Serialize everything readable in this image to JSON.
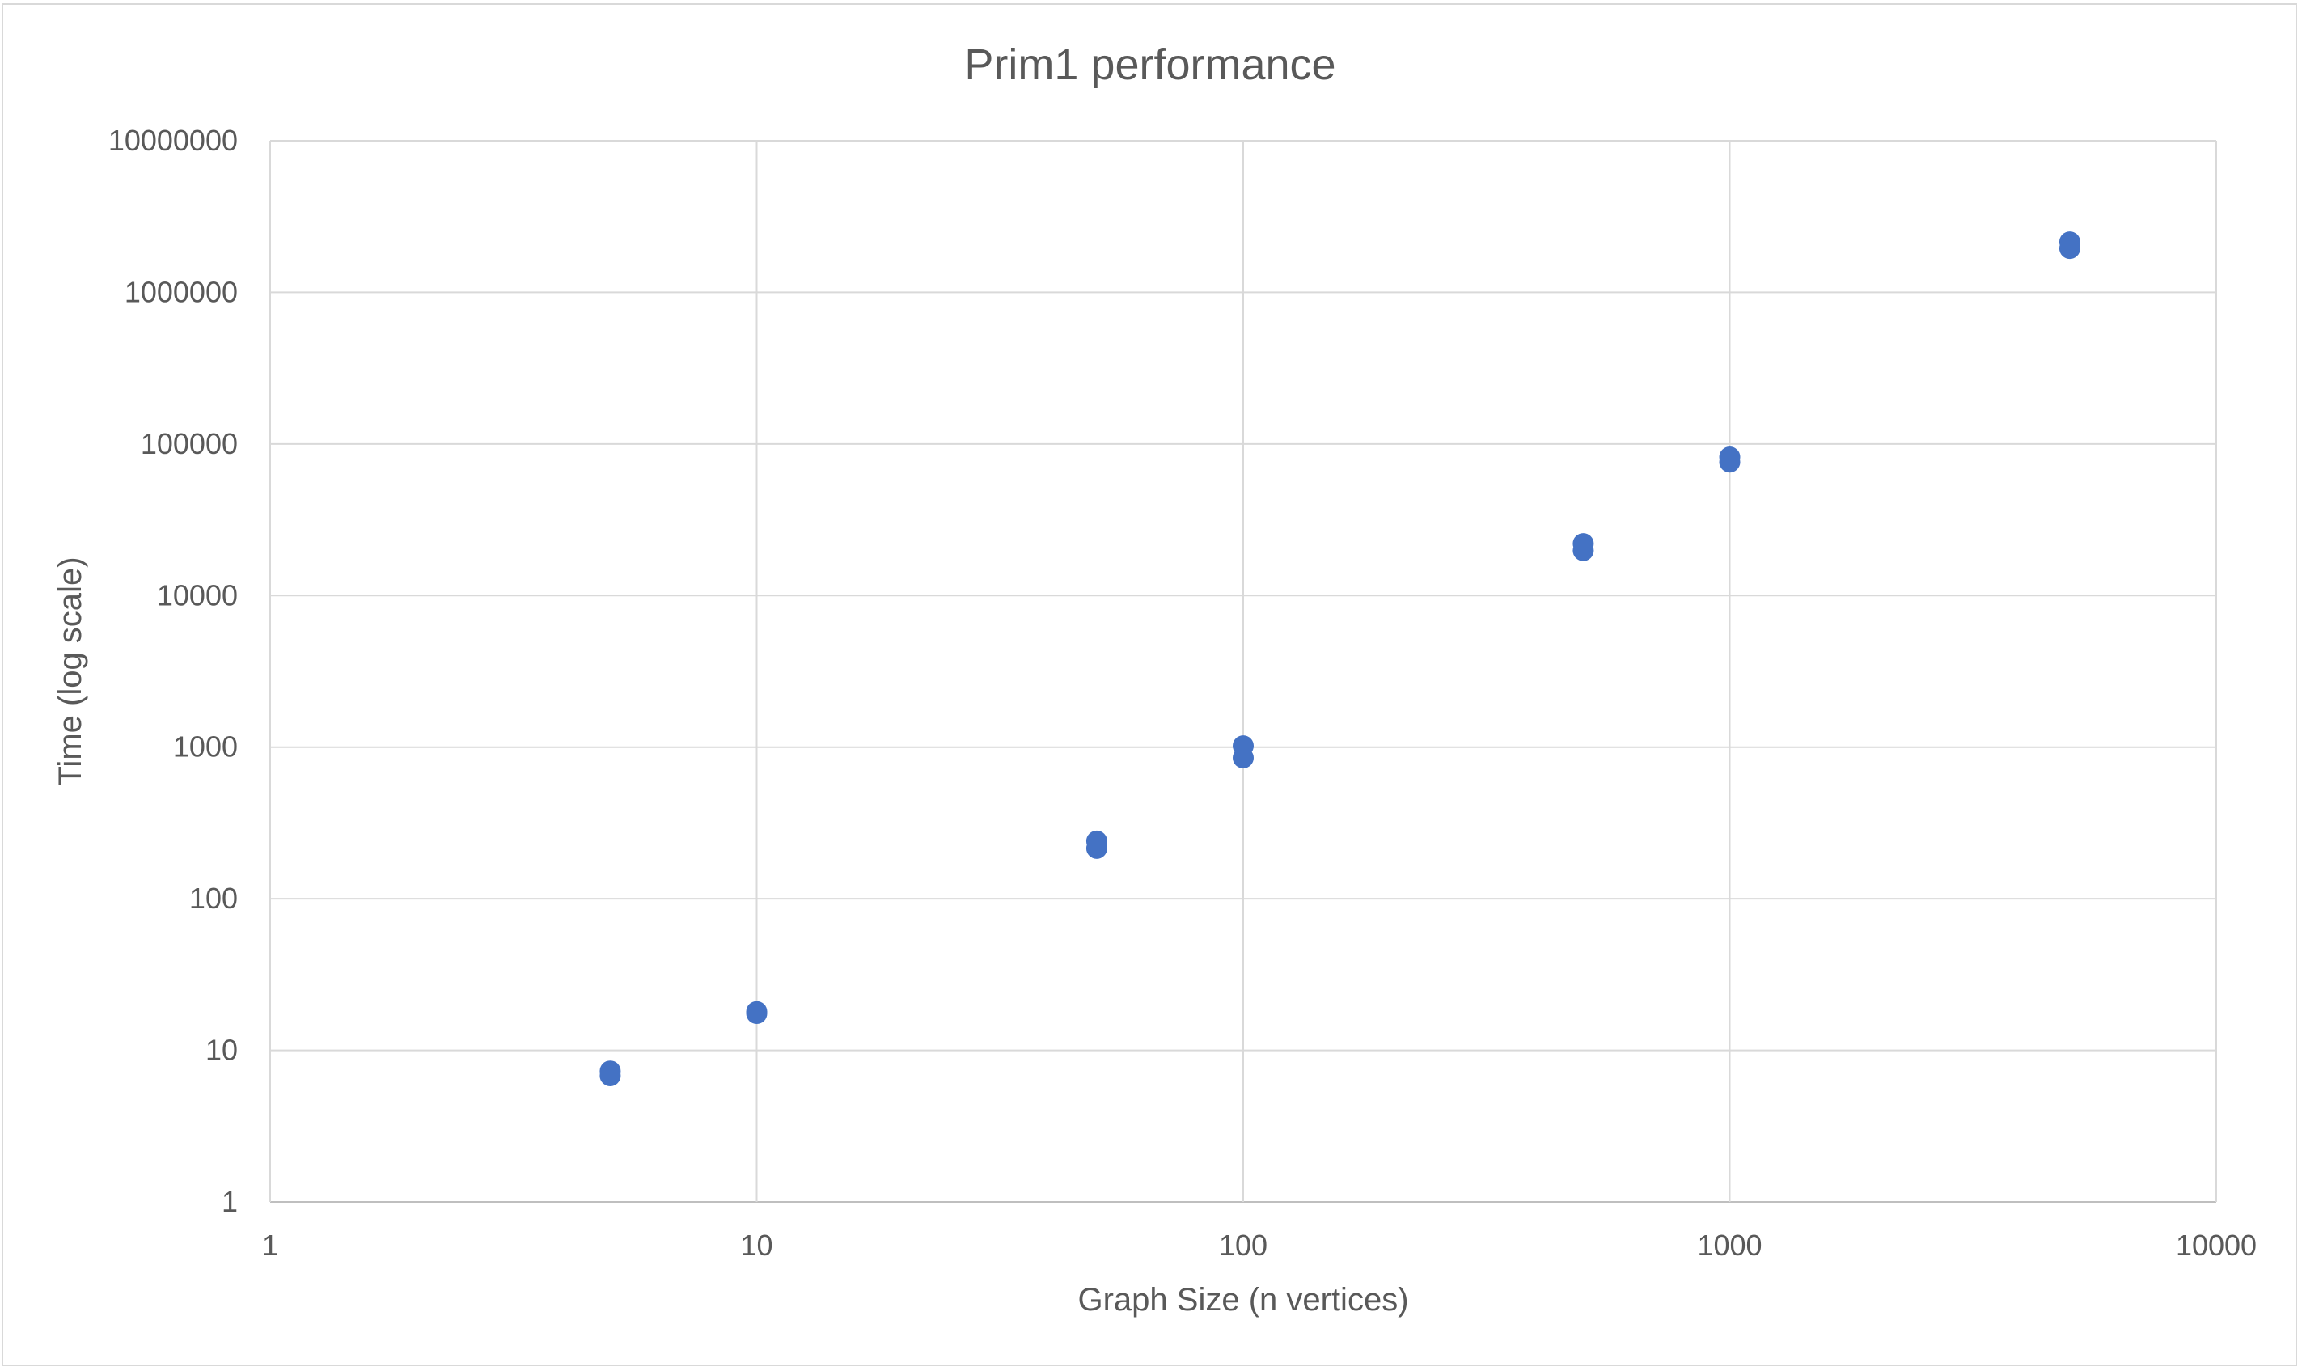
{
  "chart_data": {
    "type": "scatter",
    "title": "Prim1 performance",
    "xlabel": "Graph Size (n vertices)",
    "ylabel": "Time (log scale)",
    "x_scale": "log",
    "y_scale": "log",
    "xlim": [
      1,
      10000
    ],
    "ylim": [
      1,
      10000000
    ],
    "x_ticks": [
      "1",
      "10",
      "100",
      "1000",
      "10000"
    ],
    "y_ticks": [
      "1",
      "10",
      "100",
      "1000",
      "10000",
      "100000",
      "1000000",
      "10000000"
    ],
    "grid": true,
    "legend": "none",
    "marker_color": "#4472c4",
    "series": [
      {
        "points": [
          {
            "x": 5,
            "y": 7.3
          },
          {
            "x": 5,
            "y": 6.8
          },
          {
            "x": 10,
            "y": 18
          },
          {
            "x": 10,
            "y": 17.5
          },
          {
            "x": 50,
            "y": 240
          },
          {
            "x": 50,
            "y": 215
          },
          {
            "x": 100,
            "y": 1020
          },
          {
            "x": 100,
            "y": 850
          },
          {
            "x": 500,
            "y": 22000
          },
          {
            "x": 500,
            "y": 19800
          },
          {
            "x": 1000,
            "y": 82000
          },
          {
            "x": 1000,
            "y": 76000
          },
          {
            "x": 5000,
            "y": 2150000
          },
          {
            "x": 5000,
            "y": 1950000
          }
        ]
      }
    ]
  }
}
